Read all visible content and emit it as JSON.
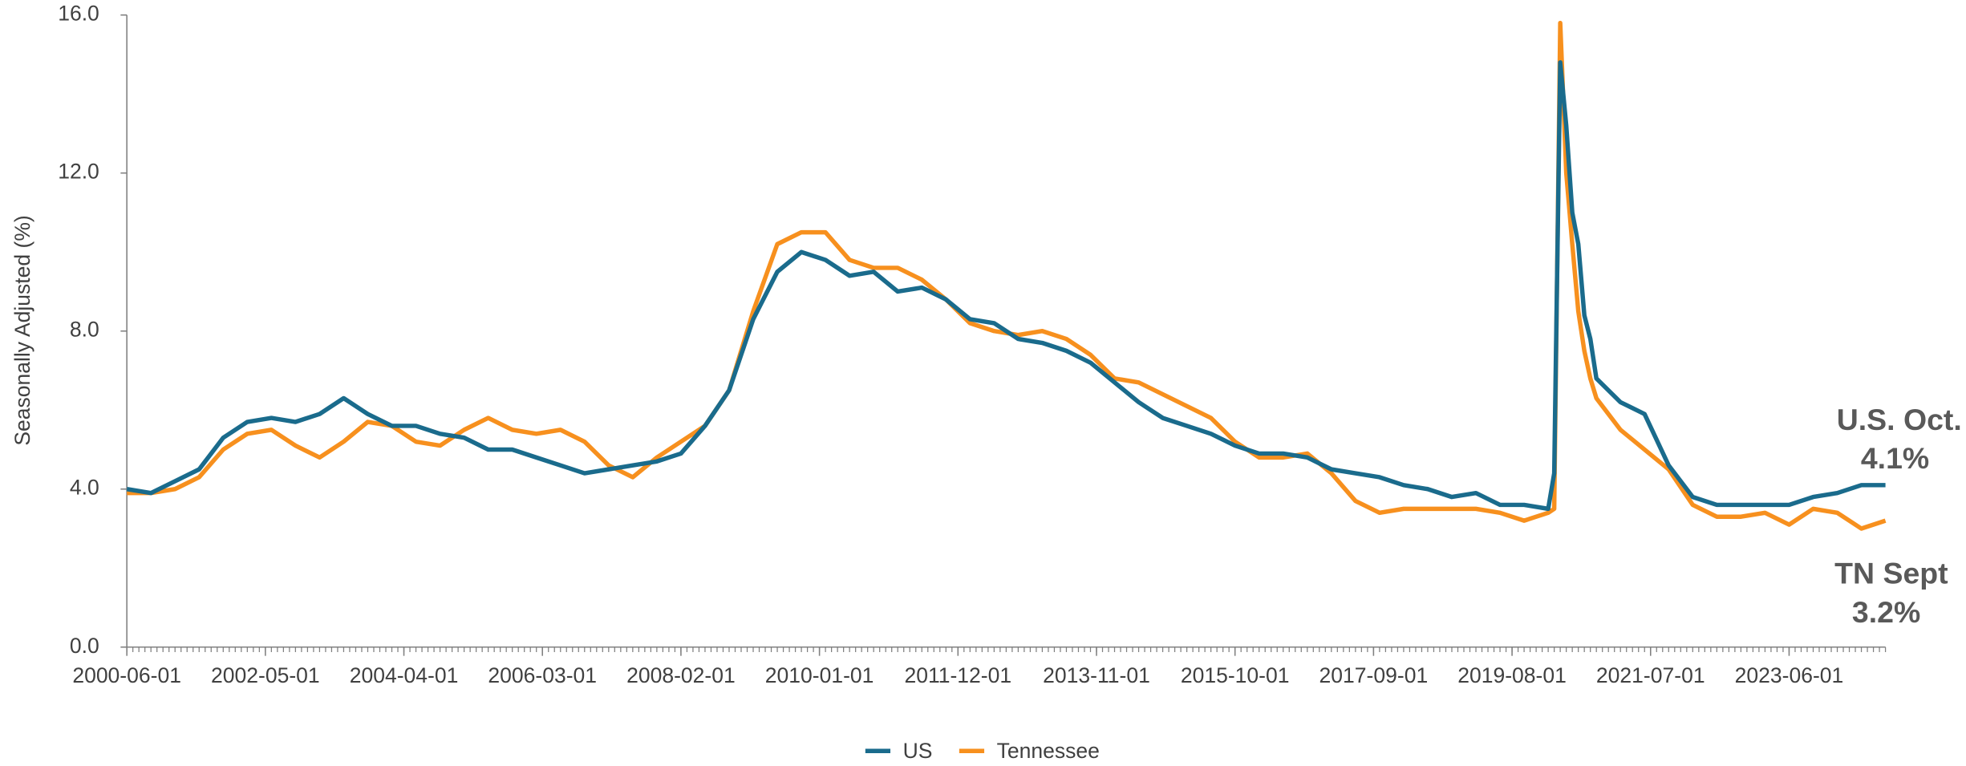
{
  "chart_data": {
    "type": "line",
    "y_label": "Seasonally Adjusted (%)",
    "annotations": [
      "U.S. Oct.",
      "4.1%",
      "TN Sept",
      "3.2%"
    ],
    "x": [
      "2000-06-01",
      "2000-10-01",
      "2001-02-01",
      "2001-06-01",
      "2001-10-01",
      "2002-02-01",
      "2002-06-01",
      "2002-10-01",
      "2003-02-01",
      "2003-06-01",
      "2003-10-01",
      "2004-02-01",
      "2004-06-01",
      "2004-10-01",
      "2005-02-01",
      "2005-06-01",
      "2005-10-01",
      "2006-02-01",
      "2006-06-01",
      "2006-10-01",
      "2007-02-01",
      "2007-06-01",
      "2007-10-01",
      "2008-02-01",
      "2008-06-01",
      "2008-10-01",
      "2009-02-01",
      "2009-06-01",
      "2009-10-01",
      "2010-02-01",
      "2010-06-01",
      "2010-10-01",
      "2011-02-01",
      "2011-06-01",
      "2011-10-01",
      "2012-02-01",
      "2012-06-01",
      "2012-10-01",
      "2013-02-01",
      "2013-06-01",
      "2013-10-01",
      "2014-02-01",
      "2014-06-01",
      "2014-10-01",
      "2015-02-01",
      "2015-06-01",
      "2015-10-01",
      "2016-02-01",
      "2016-06-01",
      "2016-10-01",
      "2017-02-01",
      "2017-06-01",
      "2017-10-01",
      "2018-02-01",
      "2018-06-01",
      "2018-10-01",
      "2019-02-01",
      "2019-06-01",
      "2019-10-01",
      "2020-02-01",
      "2020-03-01",
      "2020-04-01",
      "2020-05-01",
      "2020-06-01",
      "2020-07-01",
      "2020-08-01",
      "2020-09-01",
      "2020-10-01",
      "2021-02-01",
      "2021-06-01",
      "2021-10-01",
      "2022-02-01",
      "2022-06-01",
      "2022-10-01",
      "2023-02-01",
      "2023-06-01",
      "2023-10-01",
      "2024-02-01",
      "2024-06-01",
      "2024-10-01"
    ],
    "series": [
      {
        "name": "US",
        "color": "#1a6b8c",
        "values": [
          4.0,
          3.9,
          4.2,
          4.5,
          5.3,
          5.7,
          5.8,
          5.7,
          5.9,
          6.3,
          5.9,
          5.6,
          5.6,
          5.4,
          5.3,
          5.0,
          5.0,
          4.8,
          4.6,
          4.4,
          4.5,
          4.6,
          4.7,
          4.9,
          5.6,
          6.5,
          8.3,
          9.5,
          10.0,
          9.8,
          9.4,
          9.5,
          9.0,
          9.1,
          8.8,
          8.3,
          8.2,
          7.8,
          7.7,
          7.5,
          7.2,
          6.7,
          6.2,
          5.8,
          5.6,
          5.4,
          5.1,
          4.9,
          4.9,
          4.8,
          4.5,
          4.4,
          4.3,
          4.1,
          4.0,
          3.8,
          3.9,
          3.6,
          3.6,
          3.5,
          4.4,
          14.8,
          13.2,
          11.0,
          10.2,
          8.4,
          7.8,
          6.8,
          6.2,
          5.9,
          4.6,
          3.8,
          3.6,
          3.6,
          3.6,
          3.6,
          3.8,
          3.9,
          4.1,
          4.1
        ]
      },
      {
        "name": "Tennessee",
        "color": "#f7901e",
        "values": [
          3.9,
          3.9,
          4.0,
          4.3,
          5.0,
          5.4,
          5.5,
          5.1,
          4.8,
          5.2,
          5.7,
          5.6,
          5.2,
          5.1,
          5.5,
          5.8,
          5.5,
          5.4,
          5.5,
          5.2,
          4.6,
          4.3,
          4.8,
          5.2,
          5.6,
          6.5,
          8.5,
          10.2,
          10.5,
          10.5,
          9.8,
          9.6,
          9.6,
          9.3,
          8.8,
          8.2,
          8.0,
          7.9,
          8.0,
          7.8,
          7.4,
          6.8,
          6.7,
          6.4,
          6.1,
          5.8,
          5.2,
          4.8,
          4.8,
          4.9,
          4.4,
          3.7,
          3.4,
          3.5,
          3.5,
          3.5,
          3.5,
          3.4,
          3.2,
          3.4,
          3.5,
          15.8,
          12.0,
          10.2,
          8.5,
          7.5,
          6.8,
          6.3,
          5.5,
          5.0,
          4.5,
          3.6,
          3.3,
          3.3,
          3.4,
          3.1,
          3.5,
          3.4,
          3.0,
          3.2
        ]
      }
    ],
    "xlim": [
      "2000-06-01",
      "2024-10-01"
    ],
    "xticks": [
      "2000-06-01",
      "2002-05-01",
      "2004-04-01",
      "2006-03-01",
      "2008-02-01",
      "2010-01-01",
      "2011-12-01",
      "2013-11-01",
      "2015-10-01",
      "2017-09-01",
      "2019-08-01",
      "2021-07-01",
      "2023-06-01"
    ],
    "ylim": [
      0,
      16
    ],
    "yticks": [
      {
        "value": 0,
        "label": "0.0"
      },
      {
        "value": 4,
        "label": "4.0"
      },
      {
        "value": 8,
        "label": "8.0"
      },
      {
        "value": 12,
        "label": "12.0"
      },
      {
        "value": 16,
        "label": "16.0"
      }
    ],
    "grid": false,
    "legend": "bottom"
  }
}
